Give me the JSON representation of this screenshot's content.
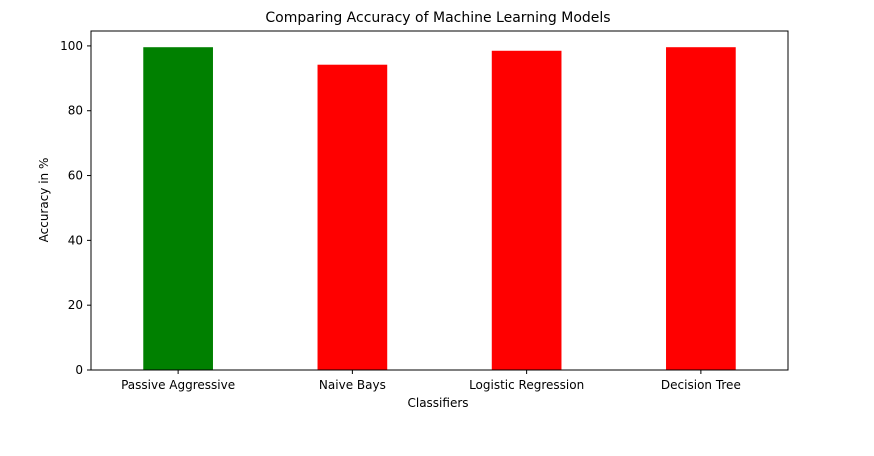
{
  "chart_data": {
    "type": "bar",
    "title": "Comparing Accuracy of Machine Learning Models",
    "xlabel": "Classifiers",
    "ylabel": "Accuracy in %",
    "categories": [
      "Passive Aggressive",
      "Naive Bays",
      "Logistic Regression",
      "Decision Tree"
    ],
    "values": [
      99.6,
      94.2,
      98.5,
      99.6
    ],
    "bar_colors": [
      "#008000",
      "#ff0000",
      "#ff0000",
      "#ff0000"
    ],
    "ylim": [
      0,
      104.6
    ],
    "yticks": [
      0,
      20,
      40,
      60,
      80,
      100
    ],
    "grid": false,
    "legend": "none"
  }
}
